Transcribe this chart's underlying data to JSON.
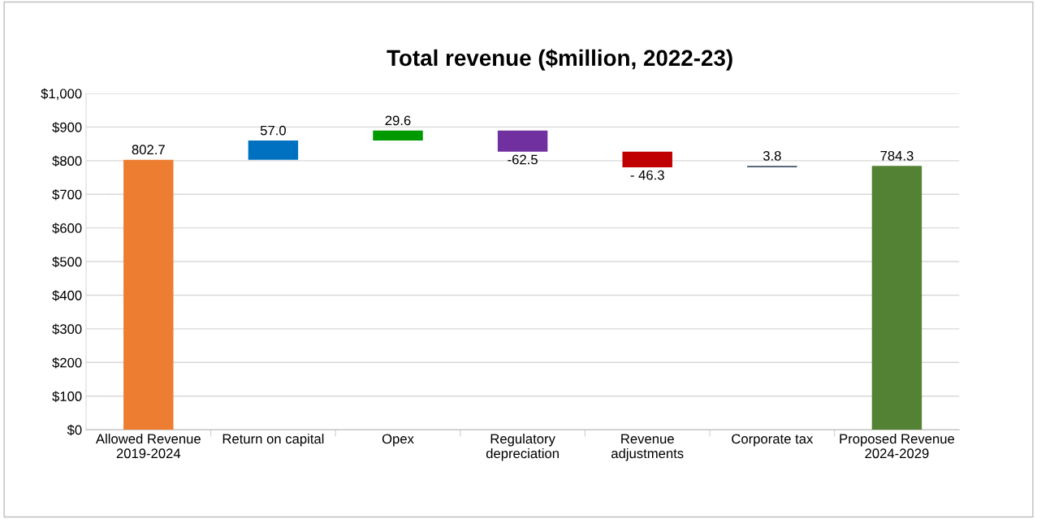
{
  "chart_data": {
    "type": "bar",
    "title": "Total revenue ($million, 2022-23)",
    "categories": [
      "Allowed Revenue\n2019-2024",
      "Return on capital",
      "Opex",
      "Regulatory\ndepreciation",
      "Revenue\nadjustments",
      "Corporate tax",
      "Proposed Revenue\n2024-2029"
    ],
    "values": [
      802.7,
      57.0,
      29.6,
      -62.5,
      -46.3,
      3.8,
      784.3
    ],
    "base": [
      0,
      802.7,
      859.7,
      889.3,
      826.8,
      780.5,
      0
    ],
    "colors": [
      "#ed7d31",
      "#0070c0",
      "#009900",
      "#7030a0",
      "#c00000",
      "#44546a",
      "#548235"
    ],
    "value_labels": [
      "802.7",
      "57.0",
      "29.6",
      "-62.5",
      "- 46.3",
      "3.8",
      "784.3"
    ],
    "ylim": [
      0,
      1000
    ],
    "yticks": [
      {
        "value": 0,
        "label": "$0"
      },
      {
        "value": 100,
        "label": "$100"
      },
      {
        "value": 200,
        "label": "$200"
      },
      {
        "value": 300,
        "label": "$300"
      },
      {
        "value": 400,
        "label": "$400"
      },
      {
        "value": 500,
        "label": "$500"
      },
      {
        "value": 600,
        "label": "$600"
      },
      {
        "value": 700,
        "label": "$700"
      },
      {
        "value": 800,
        "label": "$800"
      },
      {
        "value": 900,
        "label": "$900"
      },
      {
        "value": 1000,
        "label": "$1,000"
      }
    ],
    "grid": "y"
  }
}
